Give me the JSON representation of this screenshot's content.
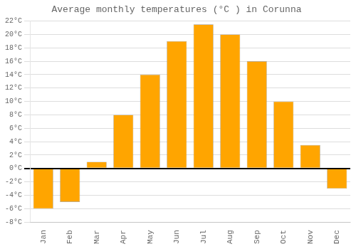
{
  "chart_data": {
    "type": "bar",
    "title": "Average monthly temperatures (°C ) in Corunna",
    "categories": [
      "Jan",
      "Feb",
      "Mar",
      "Apr",
      "May",
      "Jun",
      "Jul",
      "Aug",
      "Sep",
      "Oct",
      "Nov",
      "Dec"
    ],
    "values": [
      -6,
      -5,
      1,
      8,
      14,
      19,
      21.5,
      20,
      16,
      10,
      3.5,
      -3
    ],
    "color": "#FFA500",
    "ylim": [
      -8,
      22
    ],
    "yticks": [
      {
        "value": -8,
        "label": "-8°C"
      },
      {
        "value": -6,
        "label": "-6°C"
      },
      {
        "value": -4,
        "label": "-4°C"
      },
      {
        "value": -2,
        "label": "-2°C"
      },
      {
        "value": 0,
        "label": "0°C"
      },
      {
        "value": 2,
        "label": "2°C"
      },
      {
        "value": 4,
        "label": "4°C"
      },
      {
        "value": 6,
        "label": "6°C"
      },
      {
        "value": 8,
        "label": "8°C"
      },
      {
        "value": 10,
        "label": "10°C"
      },
      {
        "value": 12,
        "label": "12°C"
      },
      {
        "value": 14,
        "label": "14°C"
      },
      {
        "value": 16,
        "label": "16°C"
      },
      {
        "value": 18,
        "label": "18°C"
      },
      {
        "value": 20,
        "label": "20°C"
      },
      {
        "value": 22,
        "label": "22°C"
      }
    ],
    "grid": true
  }
}
